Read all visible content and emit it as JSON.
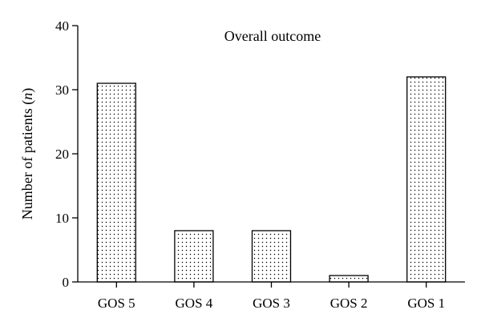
{
  "chart_data": {
    "type": "bar",
    "title": "Overall outcome",
    "xlabel": "",
    "ylabel": "Number of patients (",
    "ylabel_italic": "n",
    "ylabel_end": ")",
    "categories": [
      "GOS 5",
      "GOS 4",
      "GOS 3",
      "GOS 2",
      "GOS 1"
    ],
    "values": [
      31,
      8,
      8,
      1,
      32
    ],
    "ylim": [
      0,
      40
    ],
    "yticks": [
      "0",
      "10",
      "20",
      "30",
      "40"
    ],
    "grid": false,
    "bar_pattern": "dotted"
  }
}
